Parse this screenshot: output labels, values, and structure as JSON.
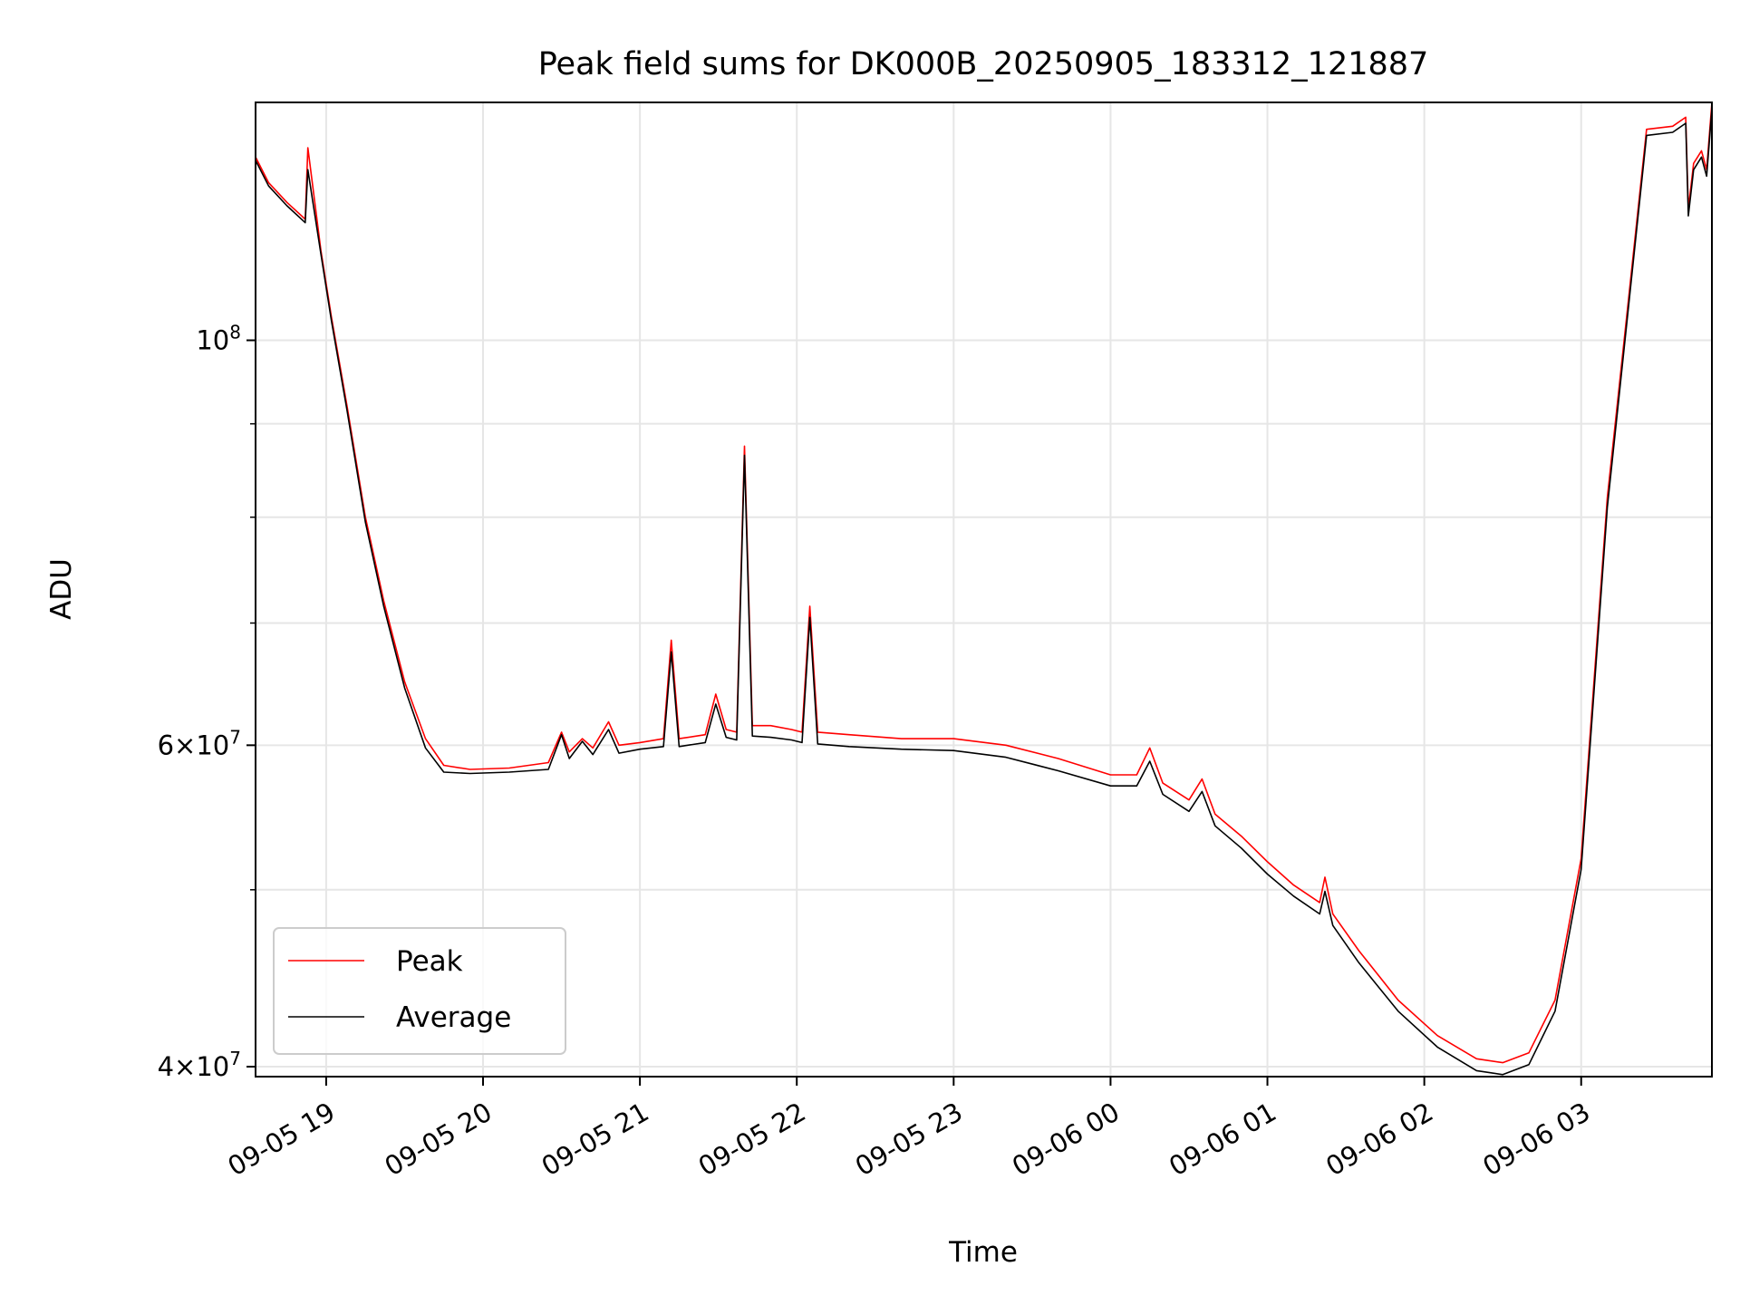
{
  "chart_data": {
    "type": "line",
    "title": "Peak field sums for DK000B_20250905_183312_121887",
    "xlabel": "Time",
    "ylabel": "ADU",
    "y_scale": "log",
    "ylim": [
      39500000,
      135000000
    ],
    "xlim": [
      "2025-09-05 18:33",
      "2025-09-06 03:50"
    ],
    "grid": true,
    "legend_position": "lower-left",
    "x_ticks": [
      "09-05 19",
      "09-05 20",
      "09-05 21",
      "09-05 22",
      "09-05 23",
      "09-06 00",
      "09-06 01",
      "09-06 02",
      "09-06 03"
    ],
    "y_tick_labels": [
      {
        "value": 40000000,
        "mantissa": "4",
        "exponent": "7"
      },
      {
        "value": 60000000,
        "mantissa": "6",
        "exponent": "7"
      },
      {
        "value": 100000000,
        "mantissa": "10",
        "exponent": "8"
      }
    ],
    "y_minor_ticks": [
      50000000,
      70000000,
      80000000,
      90000000
    ],
    "series": [
      {
        "name": "Peak",
        "color": "#ff0000",
        "points": [
          [
            "2025-09-05 18:33",
            126000000
          ],
          [
            "2025-09-05 18:38",
            122000000
          ],
          [
            "2025-09-05 18:45",
            119000000
          ],
          [
            "2025-09-05 18:52",
            116500000
          ],
          [
            "2025-09-05 18:53",
            127500000
          ],
          [
            "2025-09-05 18:58",
            112000000
          ],
          [
            "2025-09-05 19:02",
            103000000
          ],
          [
            "2025-09-05 19:08",
            92000000
          ],
          [
            "2025-09-05 19:15",
            80000000
          ],
          [
            "2025-09-05 19:22",
            72000000
          ],
          [
            "2025-09-05 19:30",
            65000000
          ],
          [
            "2025-09-05 19:38",
            60500000
          ],
          [
            "2025-09-05 19:45",
            58500000
          ],
          [
            "2025-09-05 19:55",
            58200000
          ],
          [
            "2025-09-05 20:10",
            58300000
          ],
          [
            "2025-09-05 20:25",
            58700000
          ],
          [
            "2025-09-05 20:30",
            61000000
          ],
          [
            "2025-09-05 20:33",
            59500000
          ],
          [
            "2025-09-05 20:38",
            60500000
          ],
          [
            "2025-09-05 20:42",
            59800000
          ],
          [
            "2025-09-05 20:48",
            61800000
          ],
          [
            "2025-09-05 20:52",
            60000000
          ],
          [
            "2025-09-05 21:00",
            60200000
          ],
          [
            "2025-09-05 21:09",
            60500000
          ],
          [
            "2025-09-05 21:12",
            68500000
          ],
          [
            "2025-09-05 21:15",
            60500000
          ],
          [
            "2025-09-05 21:25",
            60800000
          ],
          [
            "2025-09-05 21:29",
            64000000
          ],
          [
            "2025-09-05 21:33",
            61200000
          ],
          [
            "2025-09-05 21:37",
            61000000
          ],
          [
            "2025-09-05 21:40",
            87500000
          ],
          [
            "2025-09-05 21:43",
            61500000
          ],
          [
            "2025-09-05 21:50",
            61500000
          ],
          [
            "2025-09-05 21:58",
            61200000
          ],
          [
            "2025-09-05 22:02",
            61000000
          ],
          [
            "2025-09-05 22:05",
            71500000
          ],
          [
            "2025-09-05 22:08",
            61000000
          ],
          [
            "2025-09-05 22:20",
            60800000
          ],
          [
            "2025-09-05 22:40",
            60500000
          ],
          [
            "2025-09-05 23:00",
            60500000
          ],
          [
            "2025-09-05 23:20",
            60000000
          ],
          [
            "2025-09-05 23:40",
            59000000
          ],
          [
            "2025-09-06 00:00",
            57800000
          ],
          [
            "2025-09-06 00:10",
            57800000
          ],
          [
            "2025-09-06 00:15",
            59800000
          ],
          [
            "2025-09-06 00:20",
            57200000
          ],
          [
            "2025-09-06 00:30",
            56000000
          ],
          [
            "2025-09-06 00:35",
            57500000
          ],
          [
            "2025-09-06 00:40",
            55000000
          ],
          [
            "2025-09-06 00:50",
            53500000
          ],
          [
            "2025-09-06 01:00",
            51800000
          ],
          [
            "2025-09-06 01:10",
            50300000
          ],
          [
            "2025-09-06 01:20",
            49200000
          ],
          [
            "2025-09-06 01:22",
            50800000
          ],
          [
            "2025-09-06 01:25",
            48500000
          ],
          [
            "2025-09-06 01:35",
            46300000
          ],
          [
            "2025-09-06 01:50",
            43500000
          ],
          [
            "2025-09-06 02:05",
            41600000
          ],
          [
            "2025-09-06 02:20",
            40400000
          ],
          [
            "2025-09-06 02:30",
            40200000
          ],
          [
            "2025-09-06 02:40",
            40700000
          ],
          [
            "2025-09-06 02:50",
            43500000
          ],
          [
            "2025-09-06 03:00",
            52000000
          ],
          [
            "2025-09-06 03:10",
            82000000
          ],
          [
            "2025-09-06 03:18",
            105000000
          ],
          [
            "2025-09-06 03:25",
            130500000
          ],
          [
            "2025-09-06 03:35",
            131000000
          ],
          [
            "2025-09-06 03:40",
            132500000
          ],
          [
            "2025-09-06 03:41",
            118000000
          ],
          [
            "2025-09-06 03:43",
            125000000
          ],
          [
            "2025-09-06 03:46",
            127000000
          ],
          [
            "2025-09-06 03:48",
            124000000
          ],
          [
            "2025-09-06 03:50",
            135000000
          ]
        ]
      },
      {
        "name": "Average",
        "color": "#000000",
        "points": [
          [
            "2025-09-05 18:33",
            125500000
          ],
          [
            "2025-09-05 18:38",
            121500000
          ],
          [
            "2025-09-05 18:45",
            118500000
          ],
          [
            "2025-09-05 18:52",
            116000000
          ],
          [
            "2025-09-05 18:53",
            124000000
          ],
          [
            "2025-09-05 18:58",
            111500000
          ],
          [
            "2025-09-05 19:02",
            102500000
          ],
          [
            "2025-09-05 19:08",
            91500000
          ],
          [
            "2025-09-05 19:15",
            79500000
          ],
          [
            "2025-09-05 19:22",
            71500000
          ],
          [
            "2025-09-05 19:30",
            64500000
          ],
          [
            "2025-09-05 19:38",
            59800000
          ],
          [
            "2025-09-05 19:45",
            58000000
          ],
          [
            "2025-09-05 19:55",
            57900000
          ],
          [
            "2025-09-05 20:10",
            58000000
          ],
          [
            "2025-09-05 20:25",
            58200000
          ],
          [
            "2025-09-05 20:30",
            60800000
          ],
          [
            "2025-09-05 20:33",
            59000000
          ],
          [
            "2025-09-05 20:38",
            60300000
          ],
          [
            "2025-09-05 20:42",
            59300000
          ],
          [
            "2025-09-05 20:48",
            61200000
          ],
          [
            "2025-09-05 20:52",
            59400000
          ],
          [
            "2025-09-05 21:00",
            59700000
          ],
          [
            "2025-09-05 21:09",
            59900000
          ],
          [
            "2025-09-05 21:12",
            67500000
          ],
          [
            "2025-09-05 21:15",
            59900000
          ],
          [
            "2025-09-05 21:25",
            60200000
          ],
          [
            "2025-09-05 21:29",
            63200000
          ],
          [
            "2025-09-05 21:33",
            60600000
          ],
          [
            "2025-09-05 21:37",
            60400000
          ],
          [
            "2025-09-05 21:40",
            86500000
          ],
          [
            "2025-09-05 21:43",
            60700000
          ],
          [
            "2025-09-05 21:50",
            60600000
          ],
          [
            "2025-09-05 21:58",
            60400000
          ],
          [
            "2025-09-05 22:02",
            60200000
          ],
          [
            "2025-09-05 22:05",
            70500000
          ],
          [
            "2025-09-05 22:08",
            60100000
          ],
          [
            "2025-09-05 22:20",
            59900000
          ],
          [
            "2025-09-05 22:40",
            59700000
          ],
          [
            "2025-09-05 23:00",
            59600000
          ],
          [
            "2025-09-05 23:20",
            59100000
          ],
          [
            "2025-09-05 23:40",
            58100000
          ],
          [
            "2025-09-06 00:00",
            57000000
          ],
          [
            "2025-09-06 00:10",
            57000000
          ],
          [
            "2025-09-06 00:15",
            58800000
          ],
          [
            "2025-09-06 00:20",
            56400000
          ],
          [
            "2025-09-06 00:30",
            55200000
          ],
          [
            "2025-09-06 00:35",
            56600000
          ],
          [
            "2025-09-06 00:40",
            54200000
          ],
          [
            "2025-09-06 00:50",
            52700000
          ],
          [
            "2025-09-06 01:00",
            51000000
          ],
          [
            "2025-09-06 01:10",
            49600000
          ],
          [
            "2025-09-06 01:20",
            48500000
          ],
          [
            "2025-09-06 01:22",
            49900000
          ],
          [
            "2025-09-06 01:25",
            47800000
          ],
          [
            "2025-09-06 01:35",
            45600000
          ],
          [
            "2025-09-06 01:50",
            42900000
          ],
          [
            "2025-09-06 02:05",
            41000000
          ],
          [
            "2025-09-06 02:20",
            39800000
          ],
          [
            "2025-09-06 02:30",
            39600000
          ],
          [
            "2025-09-06 02:40",
            40100000
          ],
          [
            "2025-09-06 02:50",
            42900000
          ],
          [
            "2025-09-06 03:00",
            51300000
          ],
          [
            "2025-09-06 03:10",
            81000000
          ],
          [
            "2025-09-06 03:18",
            104000000
          ],
          [
            "2025-09-06 03:25",
            129500000
          ],
          [
            "2025-09-06 03:35",
            130000000
          ],
          [
            "2025-09-06 03:40",
            131500000
          ],
          [
            "2025-09-06 03:41",
            117000000
          ],
          [
            "2025-09-06 03:43",
            124000000
          ],
          [
            "2025-09-06 03:46",
            126000000
          ],
          [
            "2025-09-06 03:48",
            123000000
          ],
          [
            "2025-09-06 03:50",
            134000000
          ]
        ]
      }
    ]
  }
}
